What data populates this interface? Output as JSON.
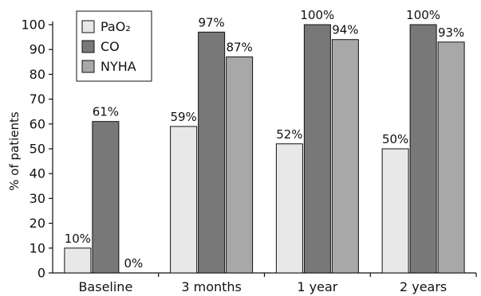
{
  "chart_data": {
    "type": "bar",
    "categories": [
      "Baseline",
      "3 months",
      "1 year",
      "2 years"
    ],
    "series": [
      {
        "name": "PaO₂",
        "values": [
          10,
          59,
          52,
          50
        ],
        "labels": [
          "10%",
          "59%",
          "52%",
          "50%"
        ],
        "color": "#e8e8e8"
      },
      {
        "name": "CO",
        "values": [
          61,
          97,
          100,
          100
        ],
        "labels": [
          "61%",
          "97%",
          "100%",
          "100%"
        ],
        "color": "#787878"
      },
      {
        "name": "NYHA",
        "values": [
          0,
          87,
          94,
          93
        ],
        "labels": [
          "0%",
          "87%",
          "94%",
          "93%"
        ],
        "color": "#a8a8a8"
      }
    ],
    "ylabel": "% of patients",
    "ylim": [
      0,
      100
    ],
    "yticks": [
      "0",
      "10",
      "20",
      "30",
      "40",
      "50",
      "60",
      "70",
      "80",
      "90",
      "100"
    ],
    "grid": false,
    "legend": "top-left"
  }
}
